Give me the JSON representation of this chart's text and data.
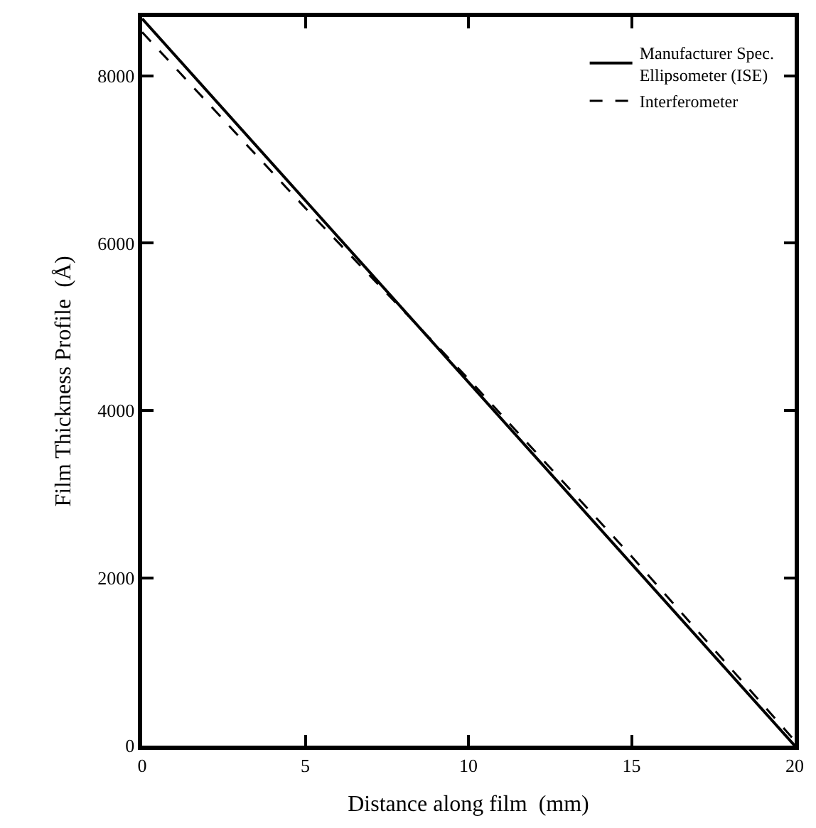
{
  "chart_data": {
    "type": "line",
    "xlabel": "Distance along film  (mm)",
    "ylabel": "Film Thickness Profile  (Å)",
    "xlim": [
      0,
      20
    ],
    "ylim": [
      0,
      8700
    ],
    "xticks": [
      0,
      5,
      10,
      15,
      20
    ],
    "yticks": [
      0,
      2000,
      4000,
      6000,
      8000
    ],
    "legend": "top right",
    "marker": "none",
    "series": [
      {
        "name": "Manufacturer Spec.\nEllipsometer (ISE)",
        "color": "#000000",
        "line_style": "solid",
        "x": [
          0,
          5,
          10,
          15,
          20
        ],
        "values": [
          8680,
          6510,
          4340,
          2170,
          0
        ]
      },
      {
        "name": "Interferometer",
        "color": "#000000",
        "line_style": "dashed",
        "x": [
          0,
          5,
          10,
          15,
          20
        ],
        "values": [
          8520,
          6420,
          4380,
          2260,
          60
        ]
      }
    ]
  }
}
